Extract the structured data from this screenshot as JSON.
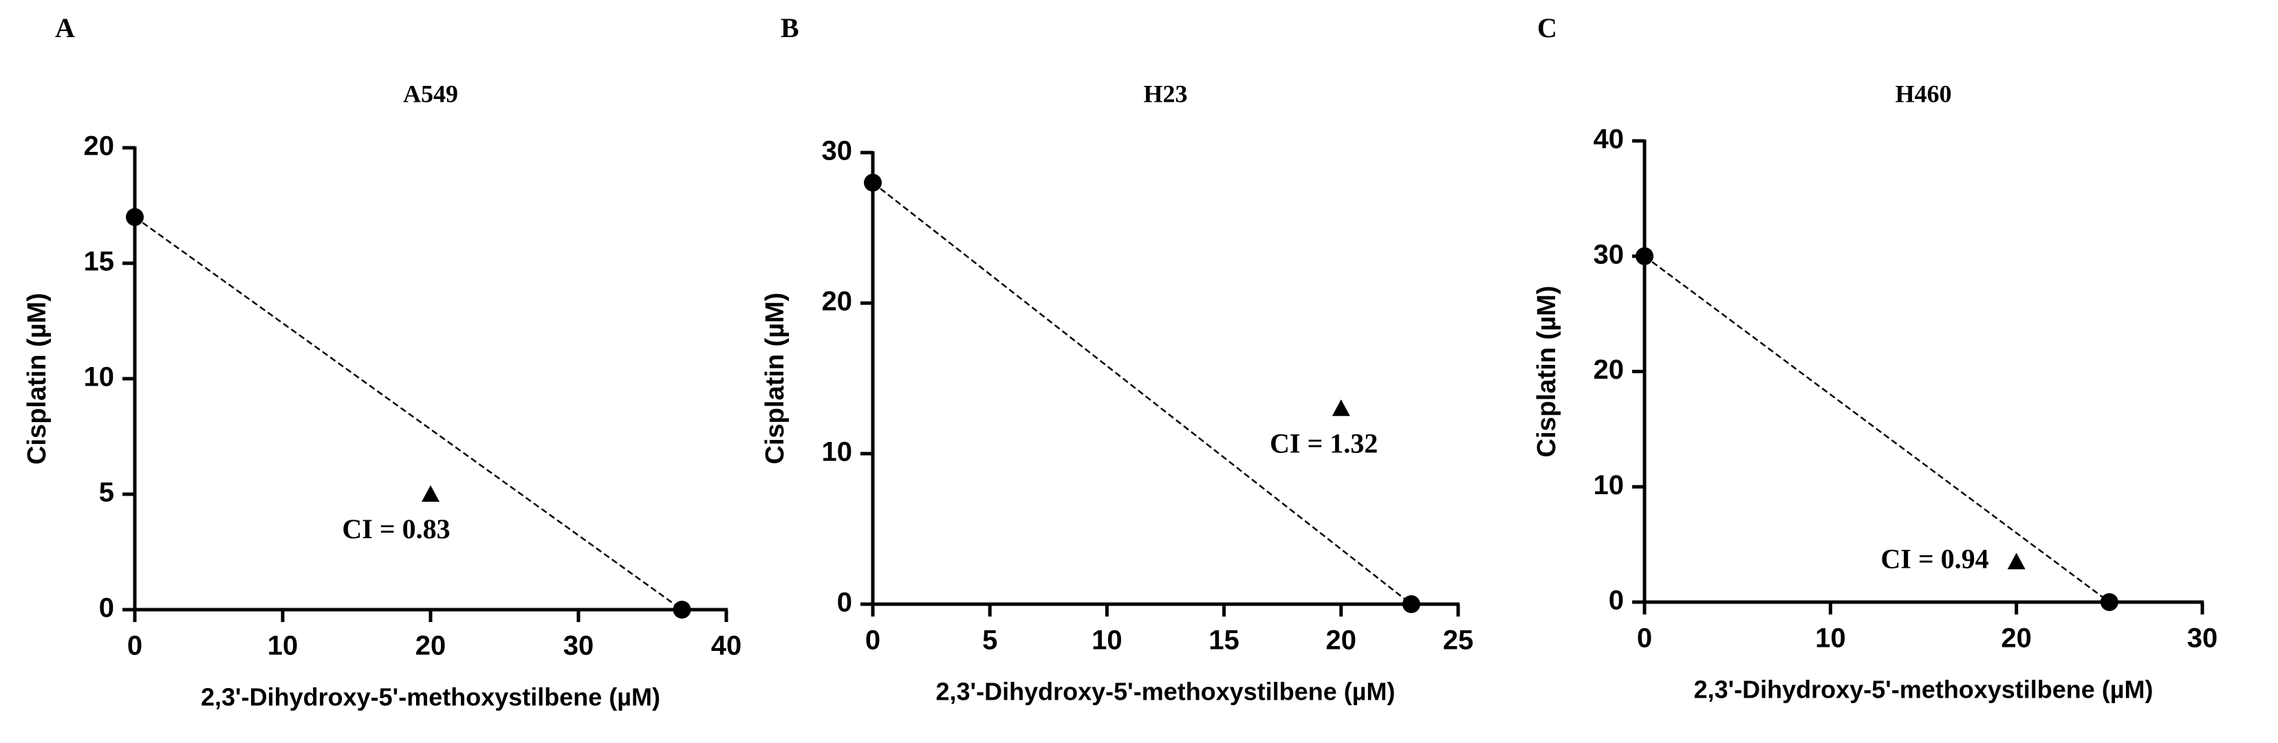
{
  "chart_data": [
    {
      "type": "scatter",
      "panel": "A",
      "title": "A549",
      "xlabel": "2,3'-Dihydroxy-5'-methoxystilbene  (µM)",
      "ylabel": "Cisplatin (µM)",
      "xlim": [
        0,
        40
      ],
      "xticks": [
        0,
        10,
        20,
        30,
        40
      ],
      "ylim": [
        0,
        20
      ],
      "yticks": [
        0,
        5,
        10,
        15,
        20
      ],
      "series": [
        {
          "x": [
            0,
            37
          ],
          "values": [
            17,
            0
          ],
          "marker": "circle",
          "line": "dashed",
          "color": "#000000"
        },
        {
          "x": [
            20
          ],
          "values": [
            5
          ],
          "marker": "triangle",
          "color": "#000000"
        }
      ],
      "annotations": [
        "CI = 0.83"
      ]
    },
    {
      "type": "scatter",
      "panel": "B",
      "title": "H23",
      "xlabel": "2,3'-Dihydroxy-5'-methoxystilbene  (µM)",
      "ylabel": "Cisplatin (µM)",
      "xlim": [
        0,
        25
      ],
      "xticks": [
        0,
        5,
        10,
        15,
        20,
        25
      ],
      "ylim": [
        0,
        30
      ],
      "yticks": [
        0,
        10,
        20,
        30
      ],
      "series": [
        {
          "x": [
            0,
            23
          ],
          "values": [
            28,
            0
          ],
          "marker": "circle",
          "line": "dashed",
          "color": "#000000"
        },
        {
          "x": [
            20
          ],
          "values": [
            13
          ],
          "marker": "triangle",
          "color": "#000000"
        }
      ],
      "annotations": [
        "CI = 1.32"
      ]
    },
    {
      "type": "scatter",
      "panel": "C",
      "title": "H460",
      "xlabel": "2,3'-Dihydroxy-5'-methoxystilbene  (µM)",
      "ylabel": "Cisplatin (µM)",
      "xlim": [
        0,
        30
      ],
      "xticks": [
        0,
        10,
        20,
        30
      ],
      "ylim": [
        0,
        40
      ],
      "yticks": [
        0,
        10,
        20,
        30,
        40
      ],
      "series": [
        {
          "x": [
            0,
            25
          ],
          "values": [
            30,
            0
          ],
          "marker": "circle",
          "line": "dashed",
          "color": "#000000"
        },
        {
          "x": [
            20
          ],
          "values": [
            3.5
          ],
          "marker": "triangle",
          "color": "#000000"
        }
      ],
      "annotations": [
        "CI = 0.94"
      ]
    }
  ]
}
